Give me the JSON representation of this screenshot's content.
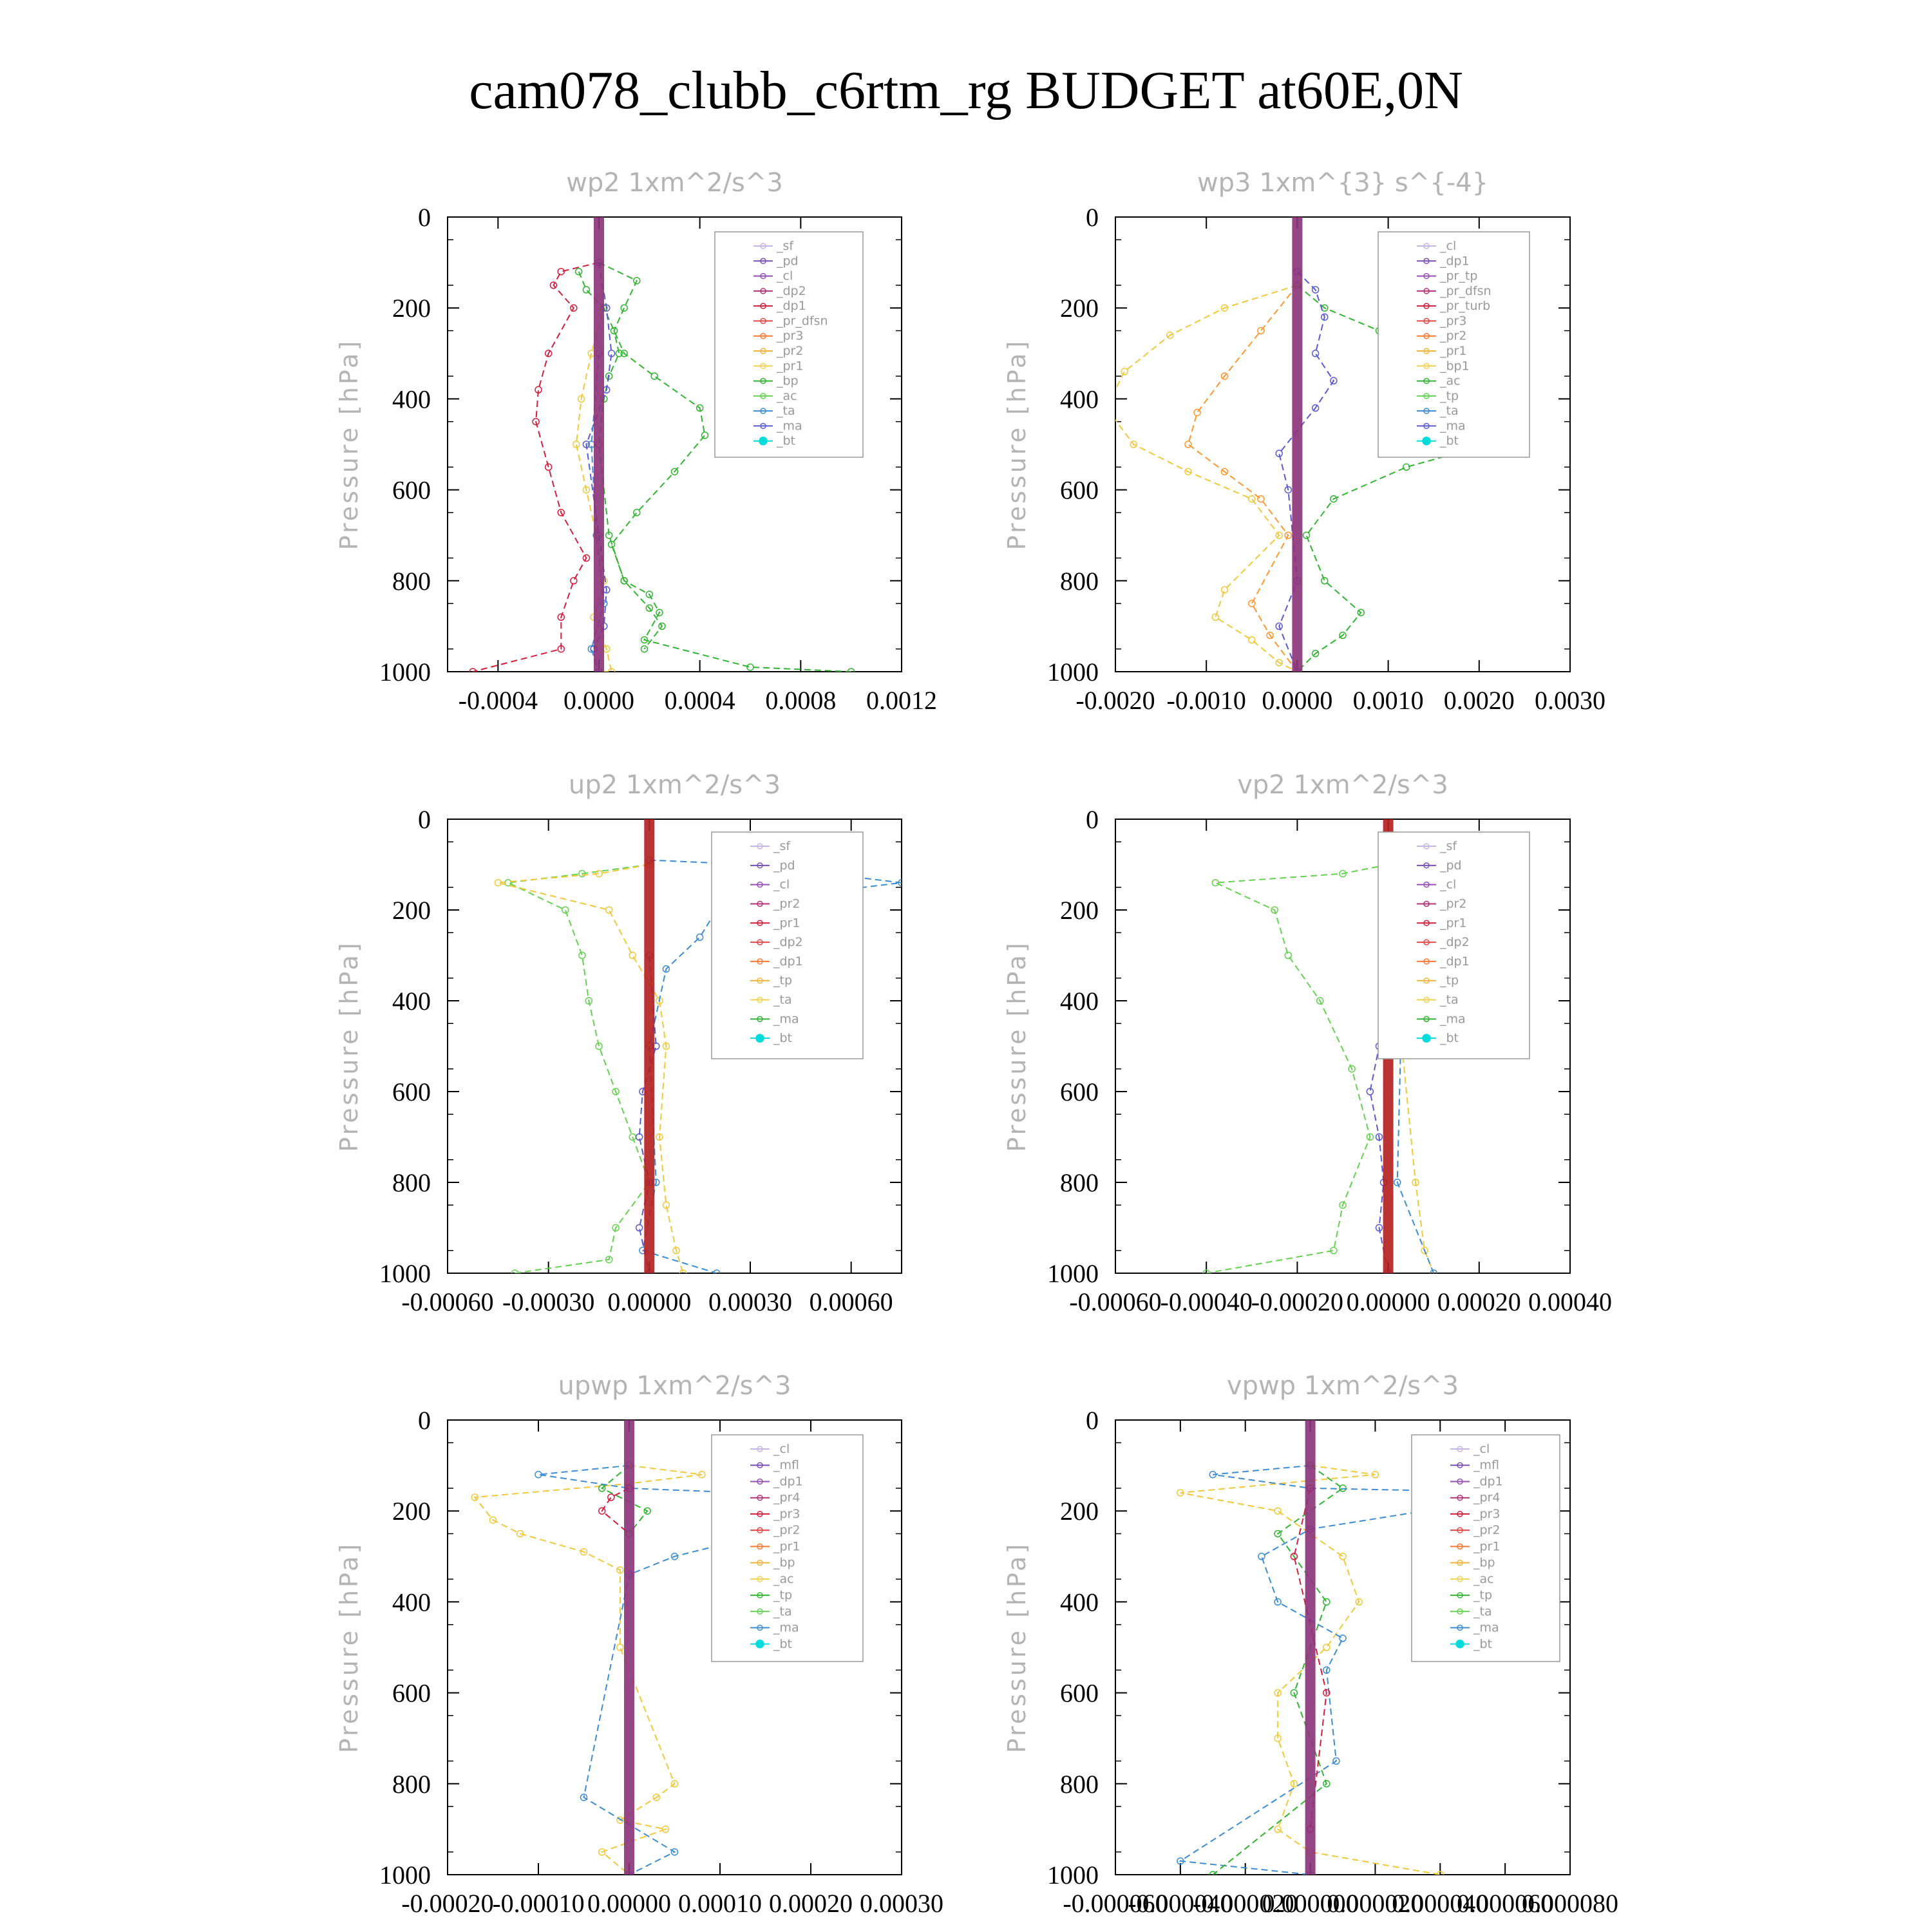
{
  "title": "cam078_clubb_c6rtm_rg  BUDGET at60E,0N",
  "chart_data": [
    {
      "type": "line",
      "id": "wp2",
      "title": "wp2   1xm^2/s^3",
      "ylabel": "Pressure [hPa]",
      "xlim": [
        -0.0006,
        0.0012
      ],
      "ylim": [
        1000,
        0
      ],
      "xticks": [
        -0.0004,
        0.0,
        0.0004,
        0.0008,
        0.0012
      ],
      "xtick_labels": [
        "-0.0004",
        "0.0000",
        "0.0004",
        "0.0008",
        "0.0012"
      ],
      "yticks": [
        0,
        200,
        400,
        600,
        800,
        1000
      ],
      "legend": [
        "_sf",
        "_pd",
        "_cl",
        "_dp2",
        "_dp1",
        "_pr_dfsn",
        "_pr3",
        "_pr2",
        "_pr1",
        "_bp",
        "_ac",
        "_ta",
        "_ma",
        "_bt"
      ],
      "series": [
        {
          "name": "_dp1",
          "color": "#d21e3c",
          "x": [
            0,
            -0.00015,
            -0.00018,
            -0.0001,
            -0.0002,
            -0.00024,
            -0.00025,
            -0.0002,
            -0.00015,
            -5e-05,
            -0.0001,
            -0.00015,
            -0.00015,
            -0.0005
          ],
          "y": [
            100,
            120,
            150,
            200,
            300,
            380,
            450,
            550,
            650,
            750,
            800,
            880,
            950,
            1000
          ]
        },
        {
          "name": "_pr2",
          "color": "#f0c83c",
          "x": [
            0,
            2e-05,
            -3e-05,
            -7e-05,
            -9e-05,
            -5e-05,
            -1e-05,
            2e-05,
            -2e-05,
            3e-05,
            5e-05,
            0
          ],
          "y": [
            100,
            200,
            300,
            400,
            500,
            600,
            700,
            800,
            880,
            950,
            1000,
            1000
          ]
        },
        {
          "name": "_pr1",
          "color": "#32b432",
          "x": [
            0,
            0.00015,
            0.0001,
            6e-05,
            8e-05,
            4e-05,
            2e-05,
            0,
            4e-05,
            0.0001,
            0.0002,
            0.00024,
            0.00018,
            0.0006,
            0.001
          ],
          "y": [
            100,
            140,
            200,
            250,
            300,
            350,
            400,
            500,
            700,
            800,
            830,
            870,
            930,
            990,
            1000
          ]
        },
        {
          "name": "_ac",
          "color": "#32b432",
          "x": [
            -8e-05,
            -5e-05,
            2e-05,
            0.0001,
            0.00022,
            0.0004,
            0.00042,
            0.0003,
            0.00015,
            5e-05,
            0.0001,
            0.0002,
            0.00025,
            0.00018
          ],
          "y": [
            120,
            160,
            200,
            300,
            350,
            420,
            480,
            560,
            650,
            720,
            800,
            860,
            900,
            950
          ]
        },
        {
          "name": "_ta",
          "color": "#5a5ad2",
          "x": [
            0,
            3e-05,
            5e-05,
            3e-05,
            -5e-05,
            0,
            3e-05,
            2e-05,
            -2e-05
          ],
          "y": [
            100,
            200,
            300,
            380,
            500,
            700,
            820,
            900,
            950
          ]
        },
        {
          "name": "_tp",
          "color": "#3c8cd2",
          "x": [
            0,
            -3e-05,
            -1e-05,
            2e-05,
            -3e-05,
            0
          ],
          "y": [
            300,
            500,
            700,
            850,
            950,
            1000
          ]
        },
        {
          "name": "_bt",
          "color": "#8c3278",
          "x": [
            0,
            0
          ],
          "y": [
            0,
            1000
          ],
          "thick": true
        }
      ]
    },
    {
      "type": "line",
      "id": "wp3",
      "title": "wp3   1xm^{3} s^{-4}",
      "ylabel": "Pressure [hPa]",
      "xlim": [
        -0.002,
        0.003
      ],
      "ylim": [
        1000,
        0
      ],
      "xticks": [
        -0.002,
        -0.001,
        0.0,
        0.001,
        0.002,
        0.003
      ],
      "xtick_labels": [
        "-0.0020",
        "-0.0010",
        "0.0000",
        "0.0010",
        "0.0020",
        "0.0030"
      ],
      "yticks": [
        0,
        200,
        400,
        600,
        800,
        1000
      ],
      "legend": [
        "_cl",
        "_dp1",
        "_pr_tp",
        "_pr_dfsn",
        "_pr_turb",
        "_pr3",
        "_pr2",
        "_pr1",
        "_bp1",
        "_ac",
        "_tp",
        "_ta",
        "_ma",
        "_bt"
      ],
      "series": [
        {
          "name": "_pr1",
          "color": "#f0c83c",
          "x": [
            0,
            -0.0008,
            -0.0014,
            -0.0019,
            -0.0021,
            -0.0018,
            -0.0012,
            -0.0005,
            -0.0002,
            -0.0008,
            -0.0009,
            -0.0005,
            -0.0002,
            0
          ],
          "y": [
            150,
            200,
            260,
            340,
            420,
            500,
            560,
            620,
            700,
            820,
            880,
            930,
            980,
            1000
          ]
        },
        {
          "name": "_pr2",
          "color": "#ff9632",
          "x": [
            0,
            -0.0004,
            -0.0008,
            -0.0011,
            -0.0012,
            -0.0008,
            -0.0004,
            -0.0001,
            -0.0005,
            -0.0003,
            0
          ],
          "y": [
            150,
            250,
            350,
            430,
            500,
            560,
            620,
            700,
            850,
            920,
            1000
          ]
        },
        {
          "name": "_ac",
          "color": "#32b432",
          "x": [
            0,
            0.0003,
            0.0009,
            0.0015,
            0.0021,
            0.0024,
            0.0021,
            0.0012,
            0.0004,
            0.0001,
            0.0003,
            0.0007,
            0.0005,
            0.0002,
            0
          ],
          "y": [
            150,
            200,
            250,
            330,
            400,
            450,
            500,
            550,
            620,
            700,
            800,
            870,
            920,
            960,
            1000
          ]
        },
        {
          "name": "_tp",
          "color": "#5a5ad2",
          "x": [
            0,
            0.0002,
            0.0003,
            0.0002,
            0.0004,
            0.0002,
            -0.0002,
            -0.0001,
            0,
            -0.0002,
            0
          ],
          "y": [
            120,
            160,
            220,
            300,
            360,
            420,
            520,
            600,
            800,
            900,
            1000
          ]
        },
        {
          "name": "_bt",
          "color": "#8c3278",
          "x": [
            0,
            0
          ],
          "y": [
            0,
            1000
          ],
          "thick": true
        }
      ]
    },
    {
      "type": "line",
      "id": "up2",
      "title": "up2   1xm^2/s^3",
      "ylabel": "Pressure [hPa]",
      "xlim": [
        -0.0006,
        0.00075
      ],
      "ylim": [
        1000,
        0
      ],
      "xticks": [
        -0.0006,
        -0.0003,
        0.0,
        0.0003,
        0.0006
      ],
      "xtick_labels": [
        "-0.00060",
        "-0.00030",
        "0.00000",
        "0.00030",
        "0.00060"
      ],
      "yticks": [
        0,
        200,
        400,
        600,
        800,
        1000
      ],
      "legend": [
        "_sf",
        "_pd",
        "_cl",
        "_pr2",
        "_pr1",
        "_dp2",
        "_dp1",
        "_tp",
        "_ta",
        "_ma",
        "_bt"
      ],
      "series": [
        {
          "name": "_dp1",
          "color": "#64d250",
          "x": [
            0,
            -0.0002,
            -0.00042,
            -0.00025,
            -0.0002,
            -0.00018,
            -0.00015,
            -0.0001,
            -5e-05,
            0,
            -0.0001,
            -0.00012,
            -0.0004
          ],
          "y": [
            100,
            120,
            140,
            200,
            300,
            400,
            500,
            600,
            700,
            800,
            900,
            970,
            1000
          ]
        },
        {
          "name": "_pr1",
          "color": "#f0c83c",
          "x": [
            0,
            -0.00015,
            -0.00045,
            -0.00012,
            -5e-05,
            3e-05,
            5e-05,
            3e-05,
            5e-05,
            8e-05,
            0.0001
          ],
          "y": [
            100,
            120,
            140,
            200,
            300,
            400,
            500,
            700,
            850,
            950,
            1000
          ]
        },
        {
          "name": "_tp",
          "color": "#3c8cd2",
          "x": [
            0,
            0.0003,
            0.00075,
            0.0003,
            0.0002,
            0.00015,
            5e-05,
            0,
            2e-05,
            -2e-05,
            0.0002
          ],
          "y": [
            90,
            100,
            140,
            180,
            200,
            260,
            330,
            500,
            800,
            950,
            1000
          ]
        },
        {
          "name": "_ta",
          "color": "#5a5ad2",
          "x": [
            0,
            2e-05,
            -2e-05,
            -3e-05,
            0,
            -3e-05,
            0
          ],
          "y": [
            300,
            500,
            600,
            700,
            800,
            900,
            1000
          ]
        },
        {
          "name": "_bt",
          "color": "#b41e1e",
          "x": [
            0,
            0
          ],
          "y": [
            0,
            1000
          ],
          "thick": true
        }
      ]
    },
    {
      "type": "line",
      "id": "vp2",
      "title": "vp2   1xm^2/s^3",
      "ylabel": "Pressure [hPa]",
      "xlim": [
        -0.0006,
        0.0004
      ],
      "ylim": [
        1000,
        0
      ],
      "xticks": [
        -0.0006,
        -0.0004,
        -0.0002,
        0.0,
        0.0002,
        0.0004
      ],
      "xtick_labels": [
        "-0.00060",
        "-0.00040",
        "-0.00020",
        "0.00000",
        "0.00020",
        "0.00040"
      ],
      "yticks": [
        0,
        200,
        400,
        600,
        800,
        1000
      ],
      "legend": [
        "_sf",
        "_pd",
        "_cl",
        "_pr2",
        "_pr1",
        "_dp2",
        "_dp1",
        "_tp",
        "_ta",
        "_ma",
        "_bt"
      ],
      "series": [
        {
          "name": "_dp1",
          "color": "#64d250",
          "x": [
            0,
            -0.0001,
            -0.00038,
            -0.00025,
            -0.00022,
            -0.00015,
            -8e-05,
            -4e-05,
            -0.0001,
            -0.00012,
            -0.0004
          ],
          "y": [
            100,
            120,
            140,
            200,
            300,
            400,
            550,
            700,
            850,
            950,
            1000
          ]
        },
        {
          "name": "_pr1",
          "color": "#f0c83c",
          "x": [
            0,
            5e-05,
            0.0001,
            8e-05,
            5e-05,
            3e-05,
            6e-05,
            8e-05,
            0.0001
          ],
          "y": [
            100,
            120,
            140,
            200,
            300,
            500,
            800,
            950,
            1000
          ]
        },
        {
          "name": "_tp",
          "color": "#3c8cd2",
          "x": [
            0,
            0.0001,
            0.0001,
            3e-05,
            2e-05,
            0.0001
          ],
          "y": [
            100,
            150,
            200,
            400,
            800,
            1000
          ]
        },
        {
          "name": "_ta",
          "color": "#5a5ad2",
          "x": [
            0,
            2e-05,
            -2e-05,
            -4e-05,
            -2e-05,
            -1e-05,
            -2e-05,
            0
          ],
          "y": [
            300,
            400,
            500,
            600,
            700,
            800,
            900,
            1000
          ]
        },
        {
          "name": "_bt",
          "color": "#b41e1e",
          "x": [
            0,
            0
          ],
          "y": [
            0,
            1000
          ],
          "thick": true
        }
      ]
    },
    {
      "type": "line",
      "id": "upwp",
      "title": "upwp   1xm^2/s^3",
      "ylabel": "Pressure [hPa]",
      "xlim": [
        -0.0002,
        0.0003
      ],
      "ylim": [
        1000,
        0
      ],
      "xticks": [
        -0.0002,
        -0.0001,
        0.0,
        0.0001,
        0.0002,
        0.0003
      ],
      "xtick_labels": [
        "-0.00020",
        "-0.00010",
        "0.00000",
        "0.00010",
        "0.00020",
        "0.00030"
      ],
      "yticks": [
        0,
        200,
        400,
        600,
        800,
        1000
      ],
      "legend": [
        "_cl",
        "_mfl",
        "_dp1",
        "_pr4",
        "_pr3",
        "_pr2",
        "_pr1",
        "_bp",
        "_ac",
        "_tp",
        "_ta",
        "_ma",
        "_bt"
      ],
      "series": [
        {
          "name": "_pr1",
          "color": "#f0c83c",
          "x": [
            0,
            8e-05,
            0,
            -0.00017,
            -0.00015,
            -0.00012,
            -5e-05,
            -1e-05,
            -1e-05,
            5e-05,
            3e-05,
            -1e-05,
            4e-05,
            -3e-05,
            0
          ],
          "y": [
            100,
            120,
            140,
            170,
            220,
            250,
            290,
            330,
            500,
            800,
            830,
            880,
            900,
            950,
            1000
          ]
        },
        {
          "name": "_tp",
          "color": "#3c8cd2",
          "x": [
            0,
            -0.0001,
            0,
            0.00025,
            0.00015,
            5e-05,
            0,
            -5e-05,
            5e-05,
            0
          ],
          "y": [
            100,
            120,
            150,
            170,
            250,
            300,
            340,
            830,
            950,
            1000
          ]
        },
        {
          "name": "_dp1",
          "color": "#d21e3c",
          "x": [
            0,
            -2e-05,
            -3e-05,
            0
          ],
          "y": [
            150,
            170,
            200,
            250
          ]
        },
        {
          "name": "_bp",
          "color": "#32b432",
          "x": [
            0,
            -3e-05,
            2e-05,
            0
          ],
          "y": [
            100,
            150,
            200,
            250
          ]
        },
        {
          "name": "_bt",
          "color": "#8c3278",
          "x": [
            0,
            0
          ],
          "y": [
            0,
            1000
          ],
          "thick": true
        }
      ]
    },
    {
      "type": "line",
      "id": "vpwp",
      "title": "vpwp   1xm^2/s^3",
      "ylabel": "Pressure [hPa]",
      "xlim": [
        -6e-05,
        8e-05
      ],
      "ylim": [
        1000,
        0
      ],
      "xticks": [
        -6e-05,
        -4e-05,
        -2e-05,
        0.0,
        2e-05,
        4e-05,
        6e-05,
        8e-05
      ],
      "xtick_labels": [
        "-0.000060",
        "-0.000040",
        "-0.000020",
        "0.000000",
        "0.000020",
        "0.000040",
        "0.000060",
        "0.000080"
      ],
      "yticks": [
        0,
        200,
        400,
        600,
        800,
        1000
      ],
      "legend": [
        "_cl",
        "_mfl",
        "_dp1",
        "_pr4",
        "_pr3",
        "_pr2",
        "_pr1",
        "_bp",
        "_ac",
        "_tp",
        "_ta",
        "_ma",
        "_bt"
      ],
      "series": [
        {
          "name": "_pr1",
          "color": "#f0c83c",
          "x": [
            0,
            2e-05,
            -4e-05,
            -1e-05,
            1e-05,
            1.5e-05,
            5e-06,
            -1e-05,
            -1e-05,
            -5e-06,
            -1e-05,
            0,
            4e-05
          ],
          "y": [
            100,
            120,
            160,
            200,
            300,
            400,
            500,
            600,
            700,
            800,
            900,
            950,
            1000
          ]
        },
        {
          "name": "_tp",
          "color": "#3c8cd2",
          "x": [
            0,
            -3e-05,
            0,
            7e-05,
            0,
            -1.5e-05,
            -1e-05,
            1e-05,
            5e-06,
            8e-06,
            -4e-05,
            0
          ],
          "y": [
            100,
            120,
            150,
            160,
            240,
            300,
            400,
            480,
            550,
            750,
            970,
            1000
          ]
        },
        {
          "name": "_bp",
          "color": "#32b432",
          "x": [
            0,
            1e-05,
            -1e-05,
            5e-06,
            -5e-06,
            5e-06,
            -3e-05
          ],
          "y": [
            100,
            150,
            250,
            400,
            600,
            800,
            1000
          ]
        },
        {
          "name": "_dp1",
          "color": "#d21e3c",
          "x": [
            0,
            -5e-06,
            5e-06,
            0
          ],
          "y": [
            150,
            300,
            600,
            900
          ]
        },
        {
          "name": "_bt",
          "color": "#8c3278",
          "x": [
            0,
            0
          ],
          "y": [
            0,
            1000
          ],
          "thick": true
        }
      ]
    }
  ]
}
